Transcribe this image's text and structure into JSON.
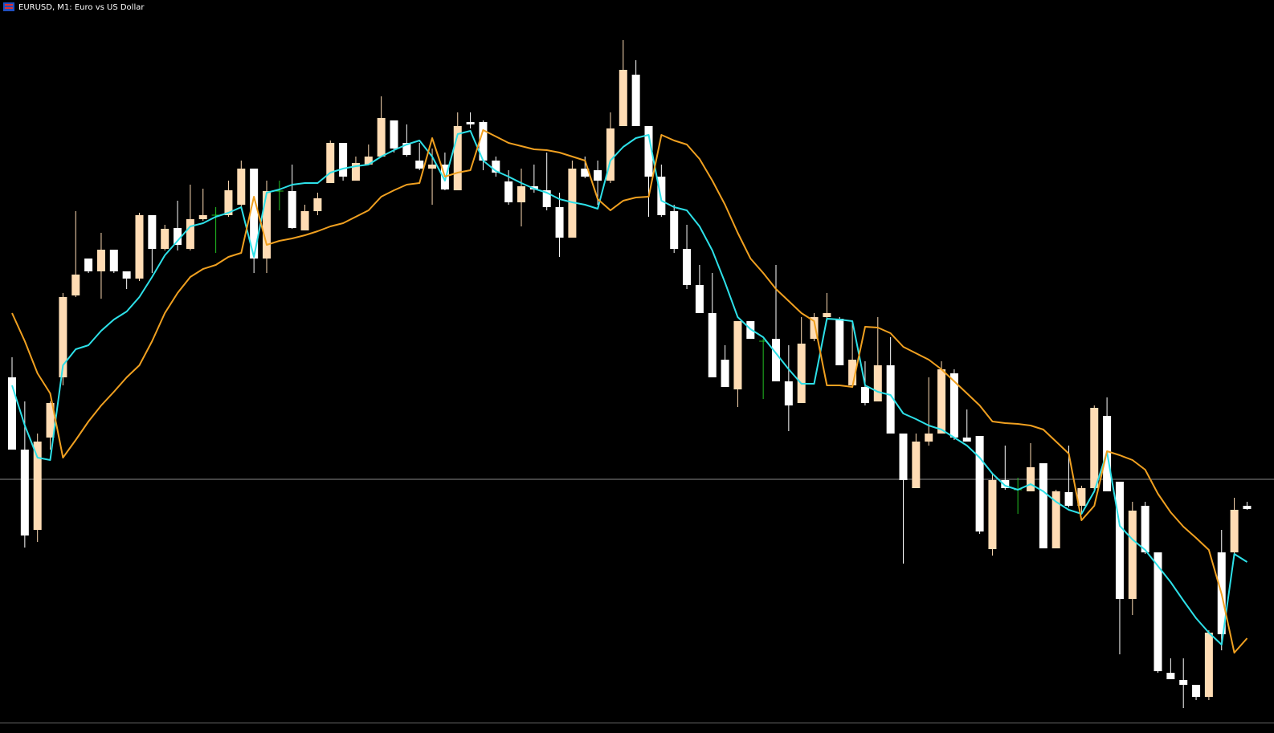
{
  "chart_data": {
    "type": "candlestick",
    "title": "EURUSD, M1:  Euro vs US Dollar",
    "ylim": [
      87,
      1000
    ],
    "bull_color": "#ffdcb4",
    "bear_color": "#ffffff",
    "doji_color": "#22c022",
    "price_line": 403,
    "price_line_color": "#8a8a8a",
    "ohlc": [
      [
        530,
        555,
        440,
        440
      ],
      [
        440,
        500,
        318,
        333
      ],
      [
        340,
        460,
        325,
        450
      ],
      [
        455,
        500,
        440,
        498
      ],
      [
        530,
        635,
        520,
        630
      ],
      [
        632,
        737,
        630,
        658
      ],
      [
        678,
        678,
        660,
        662
      ],
      [
        662,
        710,
        628,
        689
      ],
      [
        689,
        689,
        660,
        662
      ],
      [
        662,
        662,
        640,
        653
      ],
      [
        653,
        735,
        650,
        732
      ],
      [
        732,
        732,
        660,
        690
      ],
      [
        690,
        720,
        688,
        715
      ],
      [
        716,
        750,
        688,
        695
      ],
      [
        690,
        770,
        688,
        727
      ],
      [
        727,
        765,
        725,
        732
      ],
      [
        732,
        742,
        685,
        732
      ],
      [
        732,
        775,
        730,
        763
      ],
      [
        745,
        800,
        740,
        790
      ],
      [
        790,
        790,
        660,
        678
      ],
      [
        678,
        775,
        660,
        762
      ],
      [
        762,
        775,
        738,
        762
      ],
      [
        762,
        795,
        715,
        716
      ],
      [
        713,
        745,
        713,
        737
      ],
      [
        737,
        760,
        732,
        753
      ],
      [
        772,
        825,
        772,
        822
      ],
      [
        822,
        822,
        775,
        780
      ],
      [
        775,
        805,
        775,
        797
      ],
      [
        795,
        820,
        795,
        805
      ],
      [
        805,
        880,
        805,
        853
      ],
      [
        850,
        850,
        810,
        815
      ],
      [
        822,
        845,
        805,
        807
      ],
      [
        800,
        822,
        788,
        790
      ],
      [
        790,
        815,
        745,
        795
      ],
      [
        795,
        810,
        763,
        764
      ],
      [
        763,
        860,
        763,
        843
      ],
      [
        848,
        860,
        840,
        845
      ],
      [
        848,
        850,
        788,
        800
      ],
      [
        800,
        805,
        780,
        785
      ],
      [
        774,
        788,
        745,
        748
      ],
      [
        748,
        790,
        718,
        768
      ],
      [
        768,
        795,
        760,
        764
      ],
      [
        763,
        810,
        738,
        742
      ],
      [
        742,
        760,
        680,
        704
      ],
      [
        704,
        800,
        704,
        790
      ],
      [
        790,
        805,
        778,
        780
      ],
      [
        788,
        800,
        745,
        775
      ],
      [
        775,
        860,
        772,
        840
      ],
      [
        843,
        950,
        843,
        913
      ],
      [
        907,
        925,
        843,
        843
      ],
      [
        843,
        843,
        730,
        780
      ],
      [
        780,
        795,
        730,
        732
      ],
      [
        737,
        745,
        685,
        690
      ],
      [
        690,
        720,
        640,
        645
      ],
      [
        645,
        670,
        610,
        610
      ],
      [
        610,
        660,
        530,
        530
      ],
      [
        552,
        570,
        518,
        518
      ],
      [
        515,
        600,
        493,
        600
      ],
      [
        600,
        600,
        578,
        578
      ],
      [
        575,
        578,
        503,
        575
      ],
      [
        578,
        670,
        525,
        525
      ],
      [
        525,
        570,
        463,
        495
      ],
      [
        498,
        605,
        498,
        572
      ],
      [
        578,
        610,
        575,
        605
      ],
      [
        605,
        635,
        600,
        610
      ],
      [
        603,
        605,
        545,
        545
      ],
      [
        520,
        600,
        520,
        552
      ],
      [
        518,
        550,
        495,
        498
      ],
      [
        500,
        605,
        500,
        545
      ],
      [
        545,
        580,
        460,
        460
      ],
      [
        460,
        460,
        298,
        402
      ],
      [
        392,
        460,
        392,
        450
      ],
      [
        450,
        530,
        445,
        460
      ],
      [
        460,
        550,
        460,
        540
      ],
      [
        535,
        540,
        452,
        455
      ],
      [
        455,
        490,
        450,
        450
      ],
      [
        457,
        457,
        335,
        338
      ],
      [
        316,
        410,
        308,
        402
      ],
      [
        402,
        445,
        390,
        392
      ],
      [
        390,
        405,
        360,
        390
      ],
      [
        388,
        448,
        388,
        418
      ],
      [
        423,
        423,
        317,
        317
      ],
      [
        317,
        390,
        317,
        388
      ],
      [
        387,
        445,
        368,
        370
      ],
      [
        370,
        395,
        360,
        392
      ],
      [
        392,
        495,
        390,
        492
      ],
      [
        482,
        505,
        388,
        388
      ],
      [
        400,
        400,
        185,
        254
      ],
      [
        254,
        375,
        234,
        364
      ],
      [
        370,
        375,
        310,
        312
      ],
      [
        312,
        312,
        162,
        164
      ],
      [
        162,
        180,
        154,
        154
      ],
      [
        153,
        180,
        118,
        147
      ],
      [
        147,
        147,
        128,
        132
      ],
      [
        132,
        215,
        128,
        212
      ],
      [
        312,
        340,
        190,
        210
      ],
      [
        312,
        380,
        310,
        365
      ],
      [
        370,
        375,
        365,
        366
      ]
    ],
    "series": [
      {
        "color": "#2de0e8",
        "values": [
          520,
          470,
          430,
          427,
          545,
          565,
          570,
          588,
          602,
          612,
          630,
          655,
          682,
          700,
          718,
          722,
          730,
          735,
          742,
          680,
          760,
          764,
          770,
          772,
          772,
          785,
          790,
          793,
          795,
          805,
          813,
          820,
          825,
          805,
          775,
          833,
          837,
          800,
          787,
          780,
          772,
          765,
          760,
          752,
          748,
          745,
          740,
          800,
          817,
          828,
          832,
          750,
          742,
          738,
          718,
          688,
          648,
          605,
          590,
          580,
          560,
          540,
          522,
          522,
          603,
          602,
          600,
          520,
          512,
          508,
          485,
          478,
          470,
          465,
          455,
          445,
          430,
          410,
          395,
          390,
          397,
          388,
          375,
          365,
          360,
          388,
          437,
          345,
          328,
          315,
          295,
          275,
          252,
          230,
          212,
          197,
          310,
          300
        ]
      },
      {
        "color": "#f0a020",
        "values": [
          610,
          575,
          535,
          510,
          430,
          452,
          475,
          495,
          512,
          530,
          545,
          575,
          610,
          635,
          655,
          665,
          670,
          680,
          685,
          755,
          695,
          700,
          703,
          707,
          712,
          718,
          722,
          730,
          738,
          755,
          763,
          770,
          772,
          828,
          780,
          785,
          788,
          838,
          830,
          822,
          818,
          814,
          813,
          810,
          805,
          800,
          752,
          738,
          750,
          754,
          755,
          832,
          825,
          820,
          802,
          775,
          745,
          710,
          678,
          660,
          640,
          625,
          610,
          600,
          520,
          520,
          518,
          593,
          592,
          585,
          568,
          560,
          552,
          540,
          525,
          510,
          495,
          475,
          473,
          472,
          470,
          465,
          450,
          435,
          352,
          370,
          438,
          433,
          427,
          415,
          385,
          362,
          344,
          330,
          315,
          260,
          187,
          205
        ]
      }
    ]
  }
}
